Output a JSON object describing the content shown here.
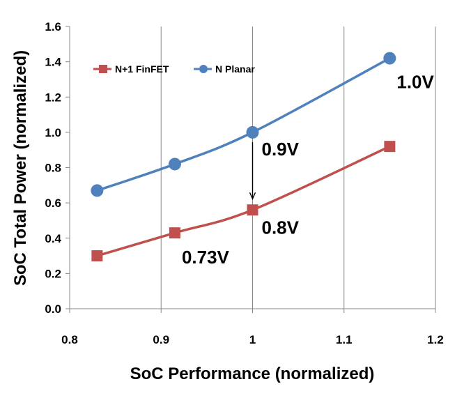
{
  "chart_data": {
    "type": "line",
    "title": "",
    "xlabel": "SoC Performance (normalized)",
    "ylabel": "SoC Total Power (normalized)",
    "xlim": [
      0.8,
      1.2
    ],
    "ylim": [
      0.0,
      1.6
    ],
    "x_ticks": [
      0.8,
      0.9,
      1.0,
      1.1,
      1.2
    ],
    "x_tick_labels": [
      "0.8",
      "0.9",
      "1",
      "1.1",
      "1.2"
    ],
    "y_ticks": [
      0.0,
      0.2,
      0.4,
      0.6,
      0.8,
      1.0,
      1.2,
      1.4,
      1.6
    ],
    "y_tick_labels": [
      "0.0",
      "0.2",
      "0.4",
      "0.6",
      "0.8",
      "1.0",
      "1.2",
      "1.4",
      "1.6"
    ],
    "grid": "vertical",
    "legend_position": "top-left",
    "series": [
      {
        "name": "N+1 FinFET",
        "color": "#c0504d",
        "marker": "square",
        "x": [
          0.83,
          0.915,
          1.0,
          1.15
        ],
        "y": [
          0.3,
          0.43,
          0.56,
          0.92
        ]
      },
      {
        "name": "N Planar",
        "color": "#4f81bd",
        "marker": "circle",
        "x": [
          0.83,
          0.915,
          1.0,
          1.15
        ],
        "y": [
          0.67,
          0.82,
          1.0,
          1.42
        ]
      }
    ],
    "annotations": [
      {
        "text": "1.0V",
        "x": 1.15,
        "y": 1.42
      },
      {
        "text": "0.9V",
        "x": 1.0,
        "y": 1.0
      },
      {
        "text": "0.8V",
        "x": 1.0,
        "y": 0.56
      },
      {
        "text": "0.73V",
        "x": 0.915,
        "y": 0.43
      }
    ],
    "arrow": {
      "from": {
        "x": 1.0,
        "y": 1.0
      },
      "to": {
        "x": 1.0,
        "y": 0.56
      }
    }
  }
}
